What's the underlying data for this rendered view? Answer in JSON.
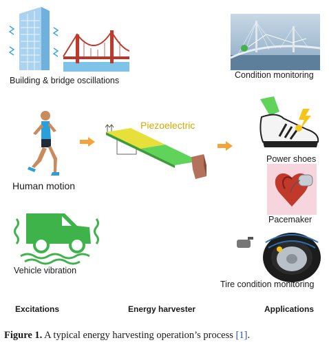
{
  "excitations": {
    "building_bridge": "Building & bridge oscillations",
    "human_motion": "Human motion",
    "vehicle_vibration": "Vehicle vibration"
  },
  "harvester": {
    "material": "Piezoelectric"
  },
  "applications": {
    "condition_monitoring": "Condition monitoring",
    "power_shoes": "Power shoes",
    "pacemaker": "Pacemaker",
    "tire_monitoring": "Tire condition monitoring"
  },
  "columns": {
    "excitations": "Excitations",
    "energy_harvester": "Energy harvester",
    "applications": "Applications"
  },
  "caption": {
    "figure_label": "Figure 1.",
    "text": " A typical energy harvesting operation’s process ",
    "ref": "[1]",
    "end": "."
  },
  "colors": {
    "arrow_orange": "#f2a43a",
    "harvester_green": "#5fd35a",
    "harvester_yellow": "#e8e03a",
    "vehicle_green": "#3db34a",
    "piezo_label": "#d8a800"
  }
}
